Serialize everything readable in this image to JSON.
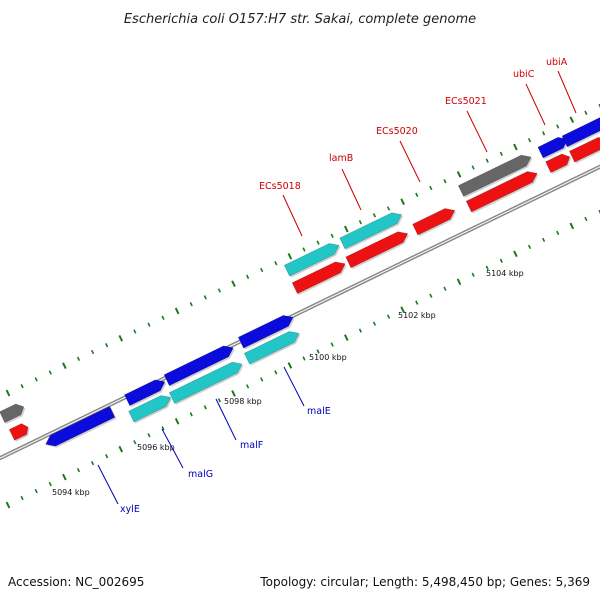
{
  "title": "Escherichia coli O157:H7 str. Sakai, complete genome",
  "footer": {
    "accession": "Accession: NC_002695",
    "summary": "Topology: circular; Length: 5,498,450 bp; Genes: 5,369"
  },
  "colors": {
    "forward_cds": "#0b0bdc",
    "reverse_cds": "#ee1111",
    "teal_cds": "#22c6c6",
    "other_gene": "#666666",
    "tick": "#1a7a1a",
    "label_upper": "#cc0000",
    "label_lower": "#0000bb",
    "backbone": "#8a8a8a"
  },
  "scale_labels": [
    "5094 kbp",
    "5096 kbp",
    "5098 kbp",
    "5100 kbp",
    "5102 kbp",
    "5104 kbp"
  ],
  "gene_labels_upper": [
    "ECs5018",
    "lamB",
    "ECs5020",
    "ECs5021",
    "ubiC",
    "ubiA"
  ],
  "gene_labels_lower": [
    "xylE",
    "malG",
    "malF",
    "malE"
  ]
}
